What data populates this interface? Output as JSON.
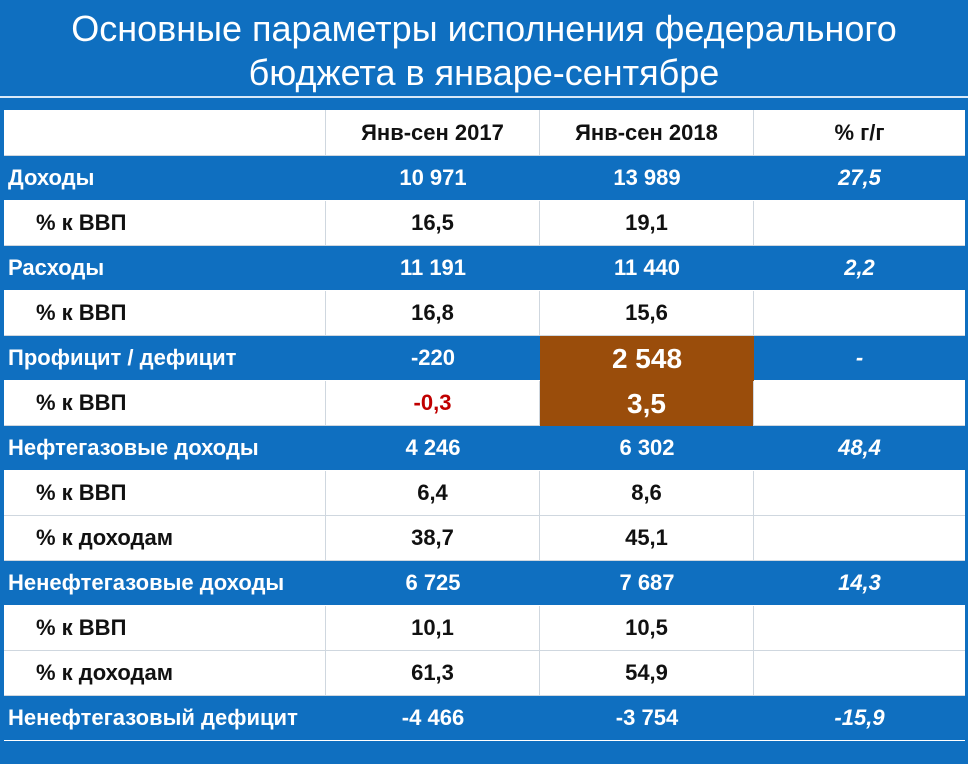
{
  "title": {
    "line1": "Основные параметры исполнения федерального",
    "line2": "бюджета в январе-сентябре"
  },
  "table": {
    "headers": [
      "",
      "Янв-сен 2017",
      "Янв-сен 2018",
      "% г/г"
    ],
    "rows": [
      {
        "type": "main",
        "label": "Доходы",
        "v2017": "10 971",
        "v2018": "13 989",
        "yoy": "27,5"
      },
      {
        "type": "sub",
        "label": "% к ВВП",
        "v2017": "16,5",
        "v2018": "19,1",
        "yoy": ""
      },
      {
        "type": "main",
        "label": "Расходы",
        "v2017": "11 191",
        "v2018": "11 440",
        "yoy": "2,2"
      },
      {
        "type": "sub",
        "label": "% к ВВП",
        "v2017": "16,8",
        "v2018": "15,6",
        "yoy": ""
      },
      {
        "type": "main",
        "label": "Профицит / дефицит",
        "v2017": "-220",
        "v2018": "2 548",
        "yoy": "-"
      },
      {
        "type": "sub",
        "label": "% к ВВП",
        "v2017": "-0,3",
        "v2018": "3,5",
        "yoy": ""
      },
      {
        "type": "main",
        "label": "Нефтегазовые доходы",
        "v2017": "4 246",
        "v2018": "6 302",
        "yoy": "48,4"
      },
      {
        "type": "sub",
        "label": "% к ВВП",
        "v2017": "6,4",
        "v2018": "8,6",
        "yoy": ""
      },
      {
        "type": "sub",
        "label": "% к доходам",
        "v2017": "38,7",
        "v2018": "45,1",
        "yoy": ""
      },
      {
        "type": "main",
        "label": "Ненефтегазовые доходы",
        "v2017": "6 725",
        "v2018": "7 687",
        "yoy": "14,3"
      },
      {
        "type": "sub",
        "label": "% к ВВП",
        "v2017": "10,1",
        "v2018": "10,5",
        "yoy": ""
      },
      {
        "type": "sub",
        "label": "% к доходам",
        "v2017": "61,3",
        "v2018": "54,9",
        "yoy": ""
      },
      {
        "type": "main",
        "label": "Ненефтегазовый дефицит",
        "v2017": "-4 466",
        "v2018": "-3 754",
        "yoy": "-15,9"
      }
    ]
  },
  "colors": {
    "background_blue": "#0f6fc0",
    "highlight_brown": "#9a4d0b",
    "negative_red": "#c00000"
  }
}
